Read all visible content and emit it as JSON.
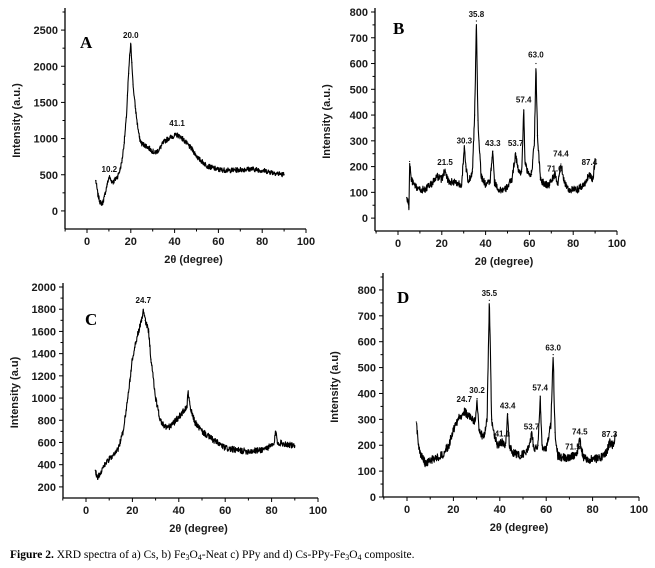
{
  "figure": {
    "caption_label": "Figure 2.",
    "caption_parts": [
      {
        "t": " XRD spectra of a) Cs, b) Fe"
      },
      {
        "sub": "3"
      },
      {
        "t": "O"
      },
      {
        "sub": "4"
      },
      {
        "t": "-Neat c) PPy and d) Cs-PPy-Fe"
      },
      {
        "sub": "3"
      },
      {
        "t": "O"
      },
      {
        "sub": "4"
      },
      {
        "t": " composite."
      }
    ]
  },
  "chart_data": [
    {
      "panel": "A",
      "type": "line",
      "title": "",
      "xlabel": "2θ (degree)",
      "ylabel": "Intensity (a.u.)",
      "xlim": [
        -10,
        100
      ],
      "ylim": [
        -250,
        2750
      ],
      "xticks": [
        0,
        20,
        40,
        60,
        80,
        100
      ],
      "yticks": [
        0,
        500,
        1000,
        1500,
        2000,
        2500
      ],
      "grid": false,
      "noise": 35,
      "series": [
        {
          "name": "Cs",
          "x": [
            4,
            5,
            6,
            7,
            8,
            9,
            10,
            10.2,
            11,
            12,
            13,
            14,
            15,
            16,
            17,
            18,
            18.5,
            19,
            19.5,
            20,
            20.5,
            21,
            22,
            23,
            24,
            25,
            27,
            29,
            31,
            33,
            35,
            37,
            39,
            41.1,
            43,
            45,
            48,
            51,
            55,
            60,
            65,
            70,
            75,
            80,
            85,
            90
          ],
          "y": [
            420,
            220,
            120,
            100,
            200,
            340,
            460,
            470,
            420,
            400,
            440,
            480,
            560,
            700,
            950,
            1300,
            1600,
            1900,
            2150,
            2300,
            2050,
            1750,
            1450,
            1200,
            1000,
            930,
            900,
            850,
            800,
            850,
            950,
            1000,
            1030,
            1050,
            1020,
            950,
            850,
            720,
            620,
            570,
            560,
            570,
            580,
            560,
            530,
            500
          ]
        }
      ],
      "peak_labels": [
        {
          "x": 10.2,
          "y": 500,
          "text": "10.2"
        },
        {
          "x": 20.0,
          "y": 2350,
          "text": "20.0"
        },
        {
          "x": 41.1,
          "y": 1130,
          "text": "41.1"
        }
      ]
    },
    {
      "panel": "B",
      "type": "line",
      "title": "",
      "xlabel": "2θ (degree)",
      "ylabel": "Intensity (a.u.)",
      "xlim": [
        -10,
        100
      ],
      "ylim": [
        -50,
        800
      ],
      "xticks": [
        0,
        20,
        40,
        60,
        80,
        100
      ],
      "yticks": [
        0,
        100,
        200,
        300,
        400,
        500,
        600,
        700,
        800
      ],
      "grid": false,
      "noise": 14,
      "series": [
        {
          "name": "Fe3O4-Neat",
          "x": [
            4,
            4.6,
            5,
            5.3,
            6,
            8,
            10,
            12,
            15,
            18,
            20,
            21.5,
            23,
            26,
            29,
            30.3,
            31,
            32,
            34,
            35,
            35.8,
            36.5,
            37,
            38,
            40,
            42,
            43.3,
            44,
            46,
            49,
            52,
            53.7,
            55,
            56.5,
            57.4,
            58,
            59,
            61,
            62.3,
            63.0,
            63.7,
            65,
            67,
            69,
            71.6,
            73,
            74.4,
            76,
            78,
            82,
            85,
            87.4,
            89,
            90
          ],
          "y": [
            80,
            60,
            40,
            220,
            150,
            120,
            110,
            110,
            130,
            160,
            150,
            190,
            140,
            140,
            130,
            270,
            200,
            140,
            180,
            400,
            765,
            380,
            300,
            160,
            130,
            140,
            260,
            140,
            110,
            110,
            150,
            250,
            180,
            180,
            420,
            220,
            180,
            170,
            300,
            600,
            320,
            150,
            130,
            130,
            170,
            130,
            210,
            140,
            110,
            110,
            130,
            170,
            150,
            230
          ]
        }
      ],
      "peak_labels": [
        {
          "x": 21.5,
          "y": 195,
          "text": "21.5"
        },
        {
          "x": 30.3,
          "y": 278,
          "text": "30.3"
        },
        {
          "x": 35.8,
          "y": 768,
          "text": "35.8"
        },
        {
          "x": 43.3,
          "y": 268,
          "text": "43.3"
        },
        {
          "x": 53.7,
          "y": 268,
          "text": "53.7"
        },
        {
          "x": 57.4,
          "y": 438,
          "text": "57.4"
        },
        {
          "x": 63.0,
          "y": 612,
          "text": "63.0"
        },
        {
          "x": 71.6,
          "y": 170,
          "text": "71.6"
        },
        {
          "x": 74.4,
          "y": 228,
          "text": "74.4"
        },
        {
          "x": 87.4,
          "y": 195,
          "text": "87.4"
        }
      ]
    },
    {
      "panel": "C",
      "type": "line",
      "title": "",
      "xlabel": "2θ (degree)",
      "ylabel": "Intensity (a.u)",
      "xlim": [
        -10,
        100
      ],
      "ylim": [
        100,
        2000
      ],
      "xticks": [
        0,
        20,
        40,
        60,
        80,
        100
      ],
      "yticks": [
        200,
        400,
        600,
        800,
        1000,
        1200,
        1400,
        1600,
        1800,
        2000
      ],
      "grid": false,
      "noise": 28,
      "series": [
        {
          "name": "PPy",
          "x": [
            4,
            5,
            6,
            8,
            10,
            12,
            14,
            16,
            18,
            20,
            22,
            24,
            24.7,
            25.5,
            27,
            28,
            30,
            32,
            34,
            36,
            38,
            40,
            42,
            43.5,
            44,
            45,
            47,
            50,
            55,
            60,
            65,
            70,
            75,
            79,
            81,
            81.8,
            82.5,
            85,
            88,
            90
          ],
          "y": [
            350,
            280,
            320,
            400,
            450,
            480,
            550,
            700,
            1000,
            1350,
            1550,
            1700,
            1800,
            1700,
            1600,
            1350,
            1000,
            800,
            740,
            740,
            780,
            830,
            880,
            920,
            1050,
            900,
            780,
            700,
            620,
            550,
            530,
            520,
            530,
            560,
            580,
            700,
            600,
            590,
            580,
            560
          ]
        }
      ],
      "peak_labels": [
        {
          "x": 24.7,
          "y": 1830,
          "text": "24.7"
        }
      ]
    },
    {
      "panel": "D",
      "type": "line",
      "title": "",
      "xlabel": "2θ (degree)",
      "ylabel": "Intensity (a.u)",
      "xlim": [
        -10,
        100
      ],
      "ylim": [
        0,
        850
      ],
      "xticks": [
        0,
        20,
        40,
        60,
        80,
        100
      ],
      "yticks": [
        0,
        100,
        200,
        300,
        400,
        500,
        600,
        700,
        800
      ],
      "grid": false,
      "noise": 16,
      "series": [
        {
          "name": "Cs-PPy-Fe3O4",
          "x": [
            4,
            5,
            6,
            8,
            10,
            12,
            15,
            18,
            20,
            22,
            24.7,
            26,
            28,
            29.3,
            30.2,
            31,
            33,
            34.5,
            35.5,
            36.5,
            37.5,
            39,
            41.1,
            42.5,
            43.4,
            44.2,
            46,
            49,
            52,
            53.7,
            55,
            56.5,
            57.4,
            58.2,
            60,
            62,
            63.0,
            63.8,
            65,
            68,
            71.5,
            73,
            74.5,
            76,
            79,
            83,
            86,
            87.3,
            89,
            90
          ],
          "y": [
            290,
            200,
            160,
            130,
            140,
            150,
            160,
            200,
            260,
            300,
            330,
            320,
            300,
            290,
            380,
            260,
            230,
            300,
            760,
            300,
            240,
            200,
            210,
            200,
            320,
            190,
            170,
            160,
            180,
            240,
            180,
            200,
            390,
            200,
            180,
            280,
            550,
            250,
            160,
            150,
            160,
            160,
            220,
            150,
            145,
            150,
            170,
            210,
            200,
            240
          ]
        }
      ],
      "peak_labels": [
        {
          "x": 24.7,
          "y": 355,
          "text": "24.7"
        },
        {
          "x": 30.2,
          "y": 390,
          "text": "30.2"
        },
        {
          "x": 35.5,
          "y": 765,
          "text": "35.5"
        },
        {
          "x": 41.1,
          "y": 222,
          "text": "41.1"
        },
        {
          "x": 43.4,
          "y": 330,
          "text": "43.4"
        },
        {
          "x": 53.7,
          "y": 250,
          "text": "53.7"
        },
        {
          "x": 57.4,
          "y": 400,
          "text": "57.4"
        },
        {
          "x": 63.0,
          "y": 555,
          "text": "63.0"
        },
        {
          "x": 71.5,
          "y": 172,
          "text": "71.5"
        },
        {
          "x": 74.5,
          "y": 230,
          "text": "74.5"
        },
        {
          "x": 87.3,
          "y": 220,
          "text": "87.3"
        }
      ]
    }
  ]
}
